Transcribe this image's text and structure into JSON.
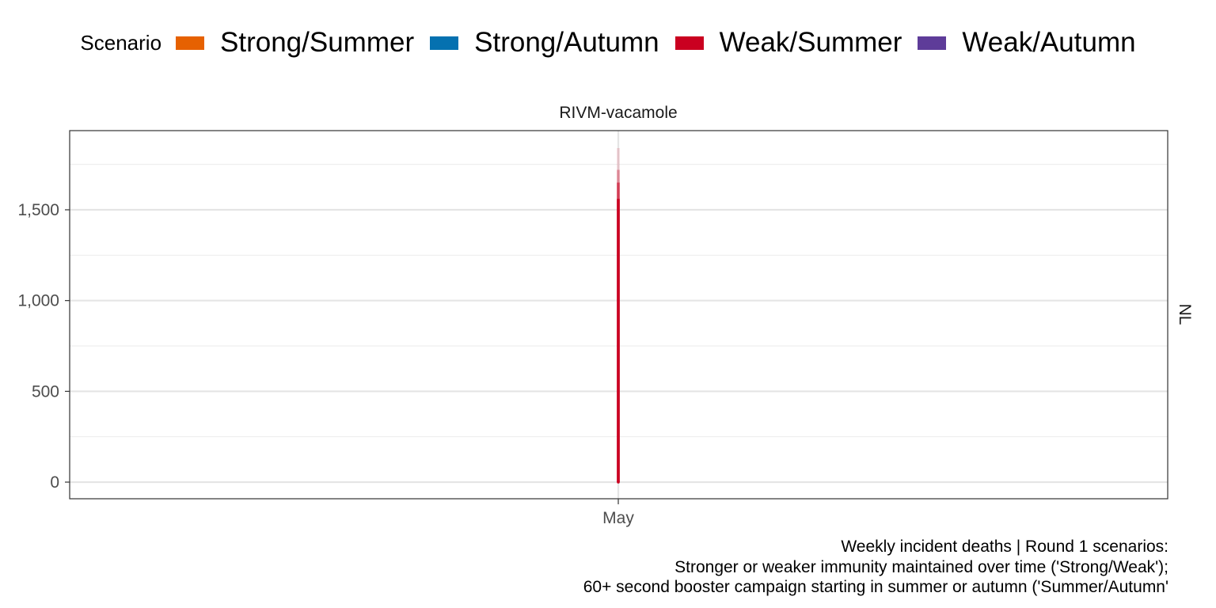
{
  "legend": {
    "title": "Scenario",
    "items": [
      {
        "label": "Strong/Summer",
        "color": "#e66101"
      },
      {
        "label": "Strong/Autumn",
        "color": "#0571b0"
      },
      {
        "label": "Weak/Summer",
        "color": "#ca0020"
      },
      {
        "label": "Weak/Autumn",
        "color": "#5e3c99"
      }
    ]
  },
  "caption": {
    "line1": "Weekly incident deaths | Round 1 scenarios:",
    "line2": "Stronger or weaker immunity maintained over time ('Strong/Weak');",
    "line3": "60+ second booster campaign starting in summer or autumn ('Summer/Autumn'"
  },
  "chart_data": {
    "type": "area",
    "facet_title": "RIVM-vacamole",
    "strip_label": "NL",
    "xlabel": "",
    "ylabel": "",
    "x_tick_labels": [
      "May"
    ],
    "y_ticks": [
      0,
      500,
      1000,
      1500
    ],
    "y_tick_labels": [
      "0",
      "500",
      "1,000",
      "1,500"
    ],
    "ylim": [
      -90,
      1930
    ],
    "grid": true,
    "legend_position": "top",
    "series": [
      {
        "name": "Weak/Summer",
        "color": "#ca0020",
        "x": [
          "May"
        ],
        "median": [
          0
        ],
        "ribbon": [
          {
            "lower": 0,
            "upper": 1560,
            "opacity": 0.95
          },
          {
            "lower": 0,
            "upper": 1650,
            "opacity": 0.55
          },
          {
            "lower": 0,
            "upper": 1720,
            "opacity": 0.3
          },
          {
            "lower": 0,
            "upper": 1840,
            "opacity": 0.15
          }
        ]
      }
    ]
  }
}
